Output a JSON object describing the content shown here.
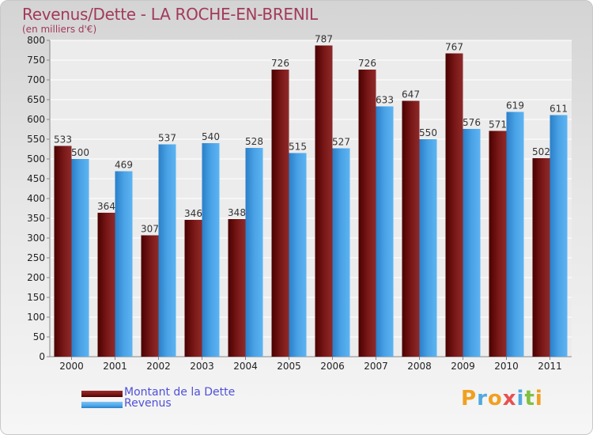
{
  "chart_data": {
    "type": "bar",
    "title": "Revenus/Dette - LA ROCHE-EN-BRENIL",
    "subtitle": "(en milliers d'€)",
    "categories": [
      "2000",
      "2001",
      "2002",
      "2003",
      "2004",
      "2005",
      "2006",
      "2007",
      "2008",
      "2009",
      "2010",
      "2011"
    ],
    "series": [
      {
        "name": "Montant de la Dette",
        "color": "#7a1515",
        "values": [
          533,
          364,
          307,
          346,
          348,
          726,
          787,
          726,
          647,
          767,
          571,
          502
        ]
      },
      {
        "name": "Revenus",
        "color": "#4da6e8",
        "values": [
          500,
          469,
          537,
          540,
          528,
          515,
          527,
          633,
          550,
          576,
          619,
          611
        ]
      }
    ],
    "ylim": [
      0,
      800
    ],
    "ytick_step": 50,
    "yticks": [
      "0",
      "50",
      "100",
      "150",
      "200",
      "250",
      "300",
      "350",
      "400",
      "450",
      "500",
      "550",
      "600",
      "650",
      "700",
      "750",
      "800"
    ],
    "grid": true,
    "xlabel": "",
    "ylabel": ""
  },
  "logo": {
    "letters": [
      "P",
      "r",
      "o",
      "x",
      "i",
      "t",
      "i"
    ],
    "colors": [
      "#f0a020",
      "#50a8e0",
      "#f0a020",
      "#e85050",
      "#50a8e0",
      "#80c040",
      "#f0a020"
    ]
  }
}
